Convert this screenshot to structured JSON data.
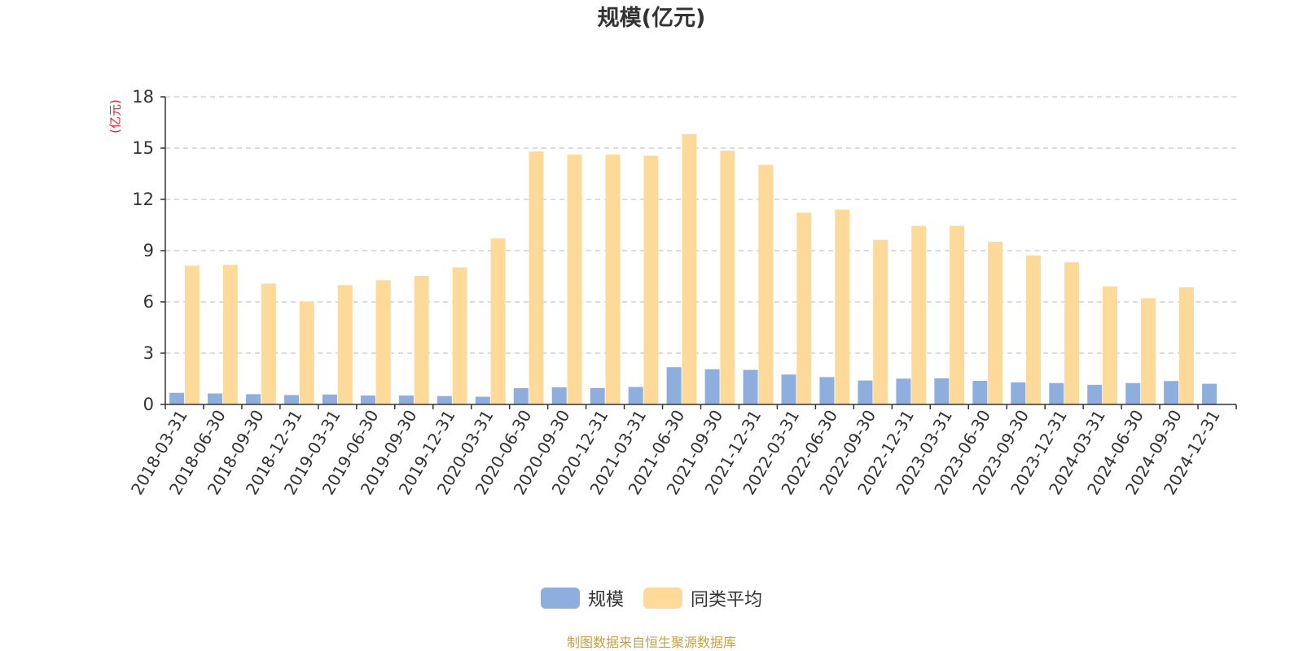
{
  "chart_data": {
    "type": "bar",
    "title": "规模(亿元)",
    "ylabel": "(亿元)",
    "xlabel": "",
    "ylim": [
      0,
      18
    ],
    "yticks": [
      0,
      3,
      6,
      9,
      12,
      15,
      18
    ],
    "grid": true,
    "legend_position": "bottom",
    "categories": [
      "2018-03-31",
      "2018-06-30",
      "2018-09-30",
      "2018-12-31",
      "2019-03-31",
      "2019-06-30",
      "2019-09-30",
      "2019-12-31",
      "2020-03-31",
      "2020-06-30",
      "2020-09-30",
      "2020-12-31",
      "2021-03-31",
      "2021-06-30",
      "2021-09-30",
      "2021-12-31",
      "2022-03-31",
      "2022-06-30",
      "2022-09-30",
      "2022-12-31",
      "2023-03-31",
      "2023-06-30",
      "2023-09-30",
      "2023-12-31",
      "2024-03-31",
      "2024-06-30",
      "2024-09-30",
      "2024-12-31"
    ],
    "series": [
      {
        "name": "规模",
        "color": "#8eaedd",
        "values": [
          0.68,
          0.64,
          0.6,
          0.55,
          0.58,
          0.52,
          0.52,
          0.49,
          0.45,
          0.95,
          1.0,
          0.96,
          1.02,
          2.18,
          2.06,
          2.02,
          1.75,
          1.6,
          1.4,
          1.51,
          1.53,
          1.38,
          1.29,
          1.25,
          1.15,
          1.25,
          1.37,
          1.21
        ]
      },
      {
        "name": "同类平均",
        "color": "#fdd99a",
        "values": [
          8.12,
          8.17,
          7.07,
          6.02,
          6.98,
          7.27,
          7.52,
          8.02,
          9.72,
          14.8,
          14.62,
          14.62,
          14.55,
          15.82,
          14.85,
          14.02,
          11.22,
          11.4,
          9.63,
          10.45,
          10.45,
          9.52,
          8.72,
          8.32,
          6.9,
          6.22,
          6.85,
          null
        ]
      }
    ]
  },
  "source_note": "制图数据来自恒生聚源数据库"
}
